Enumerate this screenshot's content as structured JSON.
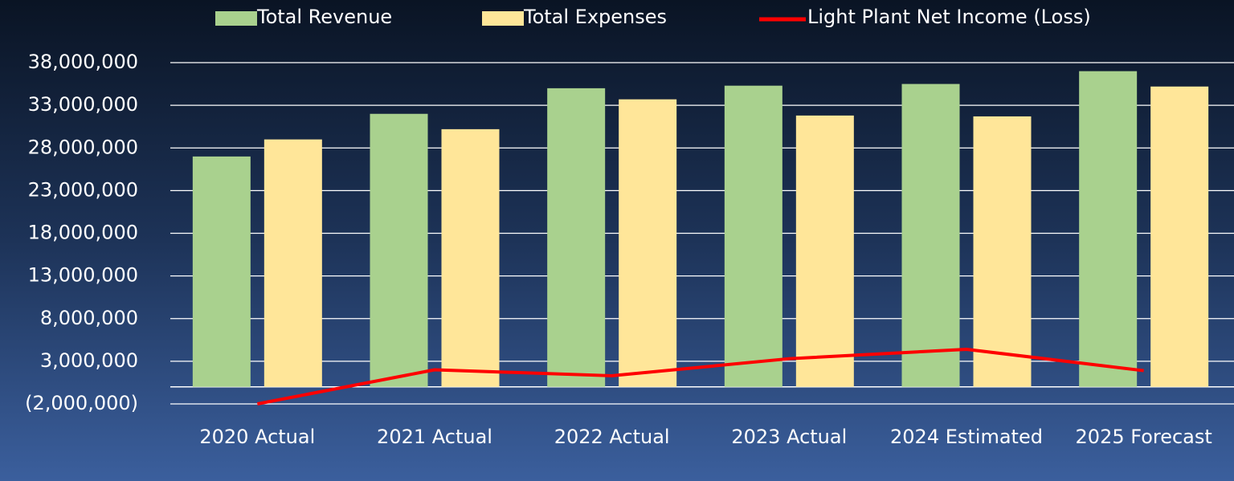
{
  "chart_data": {
    "type": "bar",
    "categories": [
      "2020 Actual",
      "2021 Actual",
      "2022 Actual",
      "2023 Actual",
      "2024 Estimated",
      "2025 Forecast"
    ],
    "series": [
      {
        "name": "Total Revenue",
        "type": "bar",
        "color": "#a9d18e",
        "values": [
          27000000,
          32000000,
          35000000,
          35300000,
          35500000,
          37000000
        ]
      },
      {
        "name": "Total Expenses",
        "type": "bar",
        "color": "#ffe699",
        "values": [
          29000000,
          30200000,
          33700000,
          31800000,
          31700000,
          35200000
        ]
      },
      {
        "name": "Light Plant Net Income (Loss)",
        "type": "line",
        "color": "#ff0000",
        "values": [
          -2000000,
          2000000,
          1300000,
          3300000,
          4400000,
          1900000
        ]
      }
    ],
    "ylim": [
      -2000000,
      38000000
    ],
    "yticks": [
      {
        "value": -2000000,
        "label": "(2,000,000)"
      },
      {
        "value": 3000000,
        "label": "3,000,000"
      },
      {
        "value": 8000000,
        "label": "8,000,000"
      },
      {
        "value": 13000000,
        "label": "13,000,000"
      },
      {
        "value": 18000000,
        "label": "18,000,000"
      },
      {
        "value": 23000000,
        "label": "23,000,000"
      },
      {
        "value": 28000000,
        "label": "28,000,000"
      },
      {
        "value": 33000000,
        "label": "33,000,000"
      },
      {
        "value": 38000000,
        "label": "38,000,000"
      }
    ],
    "grid": true,
    "legend": "top"
  }
}
